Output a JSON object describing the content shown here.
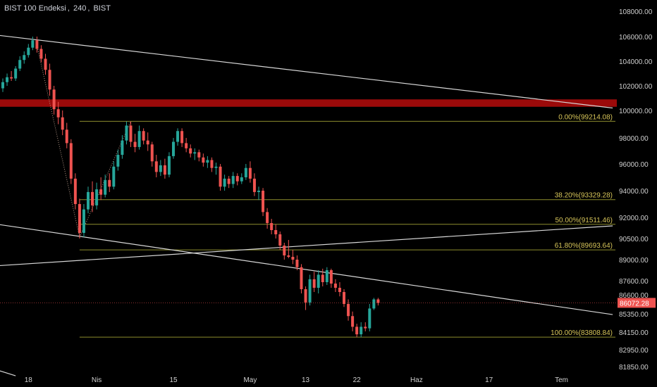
{
  "header": {
    "symbol": "BIST 100 Endeksi",
    "interval": "240",
    "exchange": "BIST"
  },
  "colors": {
    "background": "#000000",
    "up": "#26a69a",
    "down": "#ef5350",
    "fib_line": "#8d8d2e",
    "fib_label": "#d8c65a",
    "trendline": "#d8d8d8",
    "resistance_band": "#9b0a0a",
    "axis_text": "#cfcfcf",
    "price_tag": "#ef5350"
  },
  "chart_data": {
    "type": "candlestick",
    "y_axis": {
      "ticks": [
        108000,
        106000,
        104000,
        102000,
        100000,
        98000,
        96000,
        94000,
        92000,
        90500,
        89000,
        87600,
        86600,
        85350,
        84150,
        82950,
        81850
      ],
      "tick_labels": [
        "108000.00",
        "106000.00",
        "104000.00",
        "102000.00",
        "100000.00",
        "98000.00",
        "96000.00",
        "94000.00",
        "92000.00",
        "90500.00",
        "89000.00",
        "87600.00",
        "86600.00",
        "85350.00",
        "84150.00",
        "82950.00",
        "81850.00"
      ]
    },
    "x_axis": {
      "tick_labels": [
        "18",
        "Nis",
        "15",
        "May",
        "13",
        "22",
        "Haz",
        "17",
        "Tem"
      ],
      "tick_bars": [
        6,
        22,
        40,
        58,
        71,
        83,
        97,
        114,
        131
      ]
    },
    "last_price": 86072.28,
    "last_price_label": "86072.28",
    "fib_levels": [
      {
        "label": "0.00%(99214.08)",
        "value": 99214.08
      },
      {
        "label": "38.20%(93329.28)",
        "value": 93329.28
      },
      {
        "label": "50.00%(91511.46)",
        "value": 91511.46
      },
      {
        "label": "61.80%(89693.64)",
        "value": 89693.64
      },
      {
        "label": "100.00%(83808.84)",
        "value": 83808.84
      }
    ],
    "fib_start_bar": 18,
    "resistance_zone": [
      100300,
      100900
    ],
    "trendlines": [
      {
        "from": [
          -1,
          106100
        ],
        "to": [
          143,
          100200
        ]
      },
      {
        "from": [
          -1,
          91500
        ],
        "to": [
          143,
          85300
        ]
      },
      {
        "from": [
          -1,
          88600
        ],
        "to": [
          143,
          91400
        ]
      },
      {
        "from": [
          -1,
          81600
        ],
        "to": [
          3,
          81250
        ]
      }
    ],
    "swing_dotted": [
      {
        "from": [
          8,
          105300
        ],
        "to": [
          18,
          90600
        ]
      },
      {
        "from": [
          18,
          90600
        ],
        "to": [
          30,
          99200
        ]
      }
    ],
    "candles": [
      {
        "o": 101800,
        "h": 102600,
        "l": 101500,
        "c": 102300
      },
      {
        "o": 102300,
        "h": 103000,
        "l": 102000,
        "c": 102700
      },
      {
        "o": 102700,
        "h": 103200,
        "l": 102400,
        "c": 102600
      },
      {
        "o": 102600,
        "h": 103600,
        "l": 102400,
        "c": 103400
      },
      {
        "o": 103400,
        "h": 104400,
        "l": 103200,
        "c": 104100
      },
      {
        "o": 104100,
        "h": 104800,
        "l": 103800,
        "c": 104500
      },
      {
        "o": 104500,
        "h": 105400,
        "l": 104300,
        "c": 105100
      },
      {
        "o": 105100,
        "h": 106000,
        "l": 104900,
        "c": 105700
      },
      {
        "o": 105700,
        "h": 106000,
        "l": 104700,
        "c": 105000
      },
      {
        "o": 105000,
        "h": 105300,
        "l": 103900,
        "c": 104200
      },
      {
        "o": 104200,
        "h": 104600,
        "l": 102900,
        "c": 103300
      },
      {
        "o": 103300,
        "h": 103800,
        "l": 101200,
        "c": 101700
      },
      {
        "o": 101700,
        "h": 102000,
        "l": 99700,
        "c": 100100
      },
      {
        "o": 100100,
        "h": 100700,
        "l": 99000,
        "c": 99500
      },
      {
        "o": 99500,
        "h": 100000,
        "l": 98200,
        "c": 98600
      },
      {
        "o": 98600,
        "h": 99100,
        "l": 97200,
        "c": 97600
      },
      {
        "o": 97600,
        "h": 97900,
        "l": 94500,
        "c": 94900
      },
      {
        "o": 94900,
        "h": 95300,
        "l": 92600,
        "c": 93000
      },
      {
        "o": 93000,
        "h": 93400,
        "l": 90500,
        "c": 90900
      },
      {
        "o": 90900,
        "h": 93000,
        "l": 90600,
        "c": 92600
      },
      {
        "o": 92600,
        "h": 94300,
        "l": 92300,
        "c": 93900
      },
      {
        "o": 93900,
        "h": 94700,
        "l": 92400,
        "c": 92900
      },
      {
        "o": 92900,
        "h": 94600,
        "l": 92600,
        "c": 94100
      },
      {
        "o": 94100,
        "h": 95000,
        "l": 93300,
        "c": 93700
      },
      {
        "o": 93700,
        "h": 95200,
        "l": 93500,
        "c": 94800
      },
      {
        "o": 94800,
        "h": 95300,
        "l": 93900,
        "c": 94300
      },
      {
        "o": 94300,
        "h": 96200,
        "l": 94100,
        "c": 95800
      },
      {
        "o": 95800,
        "h": 97100,
        "l": 95500,
        "c": 96700
      },
      {
        "o": 96700,
        "h": 98200,
        "l": 96400,
        "c": 97800
      },
      {
        "o": 97800,
        "h": 99200,
        "l": 97500,
        "c": 98900
      },
      {
        "o": 98900,
        "h": 99200,
        "l": 97300,
        "c": 97700
      },
      {
        "o": 97700,
        "h": 98300,
        "l": 96900,
        "c": 97300
      },
      {
        "o": 97300,
        "h": 98900,
        "l": 97100,
        "c": 98500
      },
      {
        "o": 98500,
        "h": 98700,
        "l": 97500,
        "c": 97800
      },
      {
        "o": 97800,
        "h": 98400,
        "l": 97000,
        "c": 97500
      },
      {
        "o": 97500,
        "h": 97700,
        "l": 95800,
        "c": 96200
      },
      {
        "o": 96200,
        "h": 96700,
        "l": 95000,
        "c": 95400
      },
      {
        "o": 95400,
        "h": 96300,
        "l": 95100,
        "c": 95900
      },
      {
        "o": 95900,
        "h": 96400,
        "l": 94900,
        "c": 95200
      },
      {
        "o": 95200,
        "h": 96900,
        "l": 95000,
        "c": 96600
      },
      {
        "o": 96600,
        "h": 98000,
        "l": 96400,
        "c": 97700
      },
      {
        "o": 97700,
        "h": 98700,
        "l": 97400,
        "c": 98500
      },
      {
        "o": 98500,
        "h": 98700,
        "l": 97300,
        "c": 97600
      },
      {
        "o": 97600,
        "h": 98000,
        "l": 96900,
        "c": 97200
      },
      {
        "o": 97200,
        "h": 97500,
        "l": 96500,
        "c": 96800
      },
      {
        "o": 96800,
        "h": 97200,
        "l": 96300,
        "c": 96900
      },
      {
        "o": 96900,
        "h": 97100,
        "l": 96200,
        "c": 96500
      },
      {
        "o": 96500,
        "h": 96800,
        "l": 95800,
        "c": 96100
      },
      {
        "o": 96100,
        "h": 96600,
        "l": 95700,
        "c": 96300
      },
      {
        "o": 96300,
        "h": 96500,
        "l": 95400,
        "c": 95700
      },
      {
        "o": 95700,
        "h": 96100,
        "l": 95200,
        "c": 95800
      },
      {
        "o": 95800,
        "h": 96000,
        "l": 94000,
        "c": 94300
      },
      {
        "o": 94300,
        "h": 95200,
        "l": 94000,
        "c": 94900
      },
      {
        "o": 94900,
        "h": 95100,
        "l": 94200,
        "c": 94500
      },
      {
        "o": 94500,
        "h": 95400,
        "l": 94200,
        "c": 95100
      },
      {
        "o": 95100,
        "h": 95300,
        "l": 94400,
        "c": 94700
      },
      {
        "o": 94700,
        "h": 95300,
        "l": 94500,
        "c": 95000
      },
      {
        "o": 95000,
        "h": 96000,
        "l": 94800,
        "c": 95700
      },
      {
        "o": 95700,
        "h": 96200,
        "l": 94600,
        "c": 94900
      },
      {
        "o": 94900,
        "h": 95300,
        "l": 93600,
        "c": 93900
      },
      {
        "o": 93900,
        "h": 94300,
        "l": 93300,
        "c": 94000
      },
      {
        "o": 94000,
        "h": 94200,
        "l": 92100,
        "c": 92400
      },
      {
        "o": 92400,
        "h": 92700,
        "l": 91200,
        "c": 91600
      },
      {
        "o": 91600,
        "h": 91900,
        "l": 90800,
        "c": 91100
      },
      {
        "o": 91100,
        "h": 91500,
        "l": 90500,
        "c": 90800
      },
      {
        "o": 90800,
        "h": 91000,
        "l": 89700,
        "c": 90000
      },
      {
        "o": 90000,
        "h": 90200,
        "l": 89000,
        "c": 89300
      },
      {
        "o": 89300,
        "h": 90400,
        "l": 89100,
        "c": 89200
      },
      {
        "o": 89200,
        "h": 89700,
        "l": 88700,
        "c": 89000
      },
      {
        "o": 89000,
        "h": 89300,
        "l": 88300,
        "c": 88500
      },
      {
        "o": 88500,
        "h": 88700,
        "l": 86700,
        "c": 87000
      },
      {
        "o": 87000,
        "h": 87200,
        "l": 85600,
        "c": 86100
      },
      {
        "o": 86100,
        "h": 88000,
        "l": 85900,
        "c": 87700
      },
      {
        "o": 87700,
        "h": 88200,
        "l": 86800,
        "c": 87100
      },
      {
        "o": 87100,
        "h": 88300,
        "l": 86700,
        "c": 88000
      },
      {
        "o": 88000,
        "h": 88400,
        "l": 87200,
        "c": 87500
      },
      {
        "o": 87500,
        "h": 88500,
        "l": 87300,
        "c": 88300
      },
      {
        "o": 88300,
        "h": 88400,
        "l": 87100,
        "c": 87400
      },
      {
        "o": 87400,
        "h": 87700,
        "l": 86800,
        "c": 87100
      },
      {
        "o": 87100,
        "h": 87500,
        "l": 86500,
        "c": 86800
      },
      {
        "o": 86800,
        "h": 87000,
        "l": 85800,
        "c": 86000
      },
      {
        "o": 86000,
        "h": 86300,
        "l": 84900,
        "c": 85200
      },
      {
        "o": 85200,
        "h": 85500,
        "l": 84200,
        "c": 84500
      },
      {
        "o": 84500,
        "h": 84700,
        "l": 83800,
        "c": 84000
      },
      {
        "o": 84000,
        "h": 84800,
        "l": 83800,
        "c": 84500
      },
      {
        "o": 84500,
        "h": 84800,
        "l": 84200,
        "c": 84400
      },
      {
        "o": 84400,
        "h": 86000,
        "l": 84200,
        "c": 85700
      },
      {
        "o": 85700,
        "h": 86400,
        "l": 85600,
        "c": 86300
      },
      {
        "o": 86300,
        "h": 86400,
        "l": 85900,
        "c": 86072
      }
    ]
  }
}
